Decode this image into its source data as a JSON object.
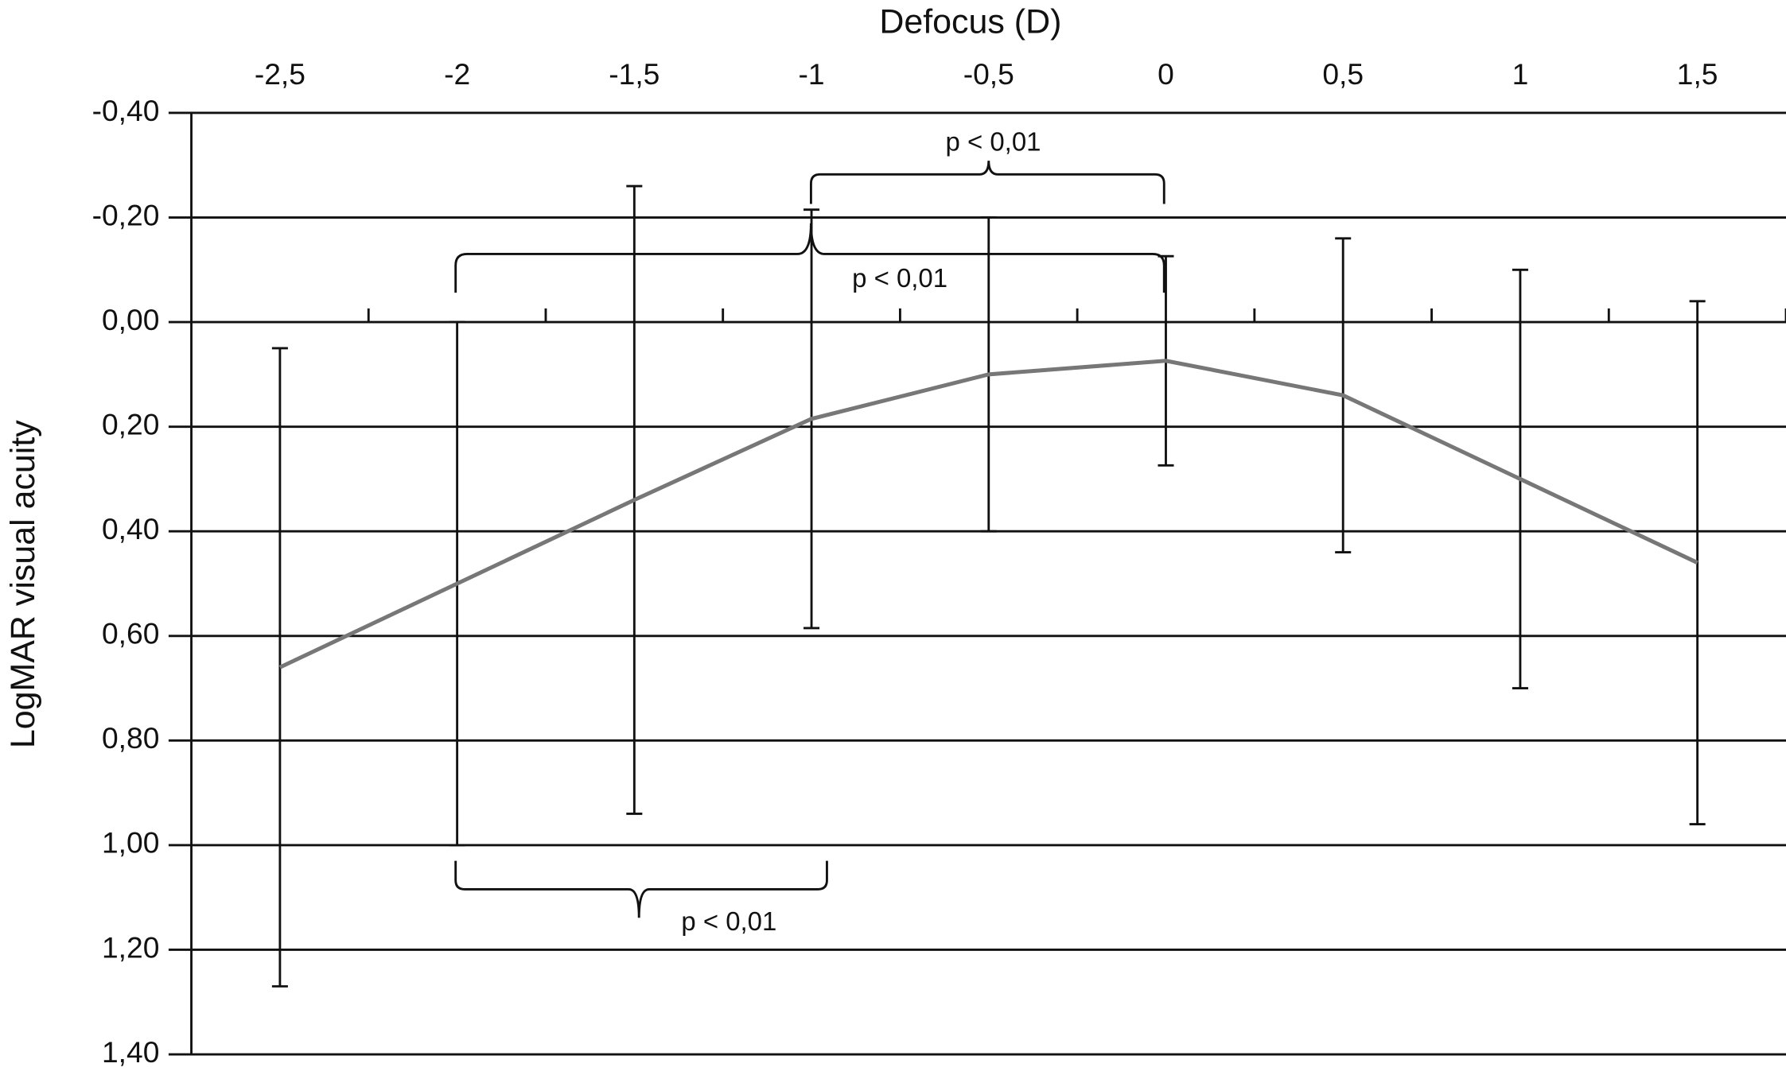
{
  "chart_data": {
    "type": "line",
    "xlabel": "Defocus (D)",
    "ylabel": "LogMAR visual acuity",
    "categories": [
      {
        "value": -2.5,
        "label": "-2,5"
      },
      {
        "value": -2,
        "label": "-2"
      },
      {
        "value": -1.5,
        "label": "-1,5"
      },
      {
        "value": -1,
        "label": "-1"
      },
      {
        "value": -0.5,
        "label": "-0,5"
      },
      {
        "value": 0,
        "label": "0"
      },
      {
        "value": 0.5,
        "label": "0,5"
      },
      {
        "value": 1,
        "label": "1"
      },
      {
        "value": 1.5,
        "label": "1,5"
      }
    ],
    "series": [
      {
        "color": "#777777",
        "values": [
          0.66,
          0.5,
          0.34,
          0.185,
          0.1,
          0.074,
          0.14,
          0.3,
          0.46
        ],
        "errors": [
          0.61,
          0.5,
          0.6,
          0.4,
          0.3,
          0.2,
          0.3,
          0.4,
          0.5
        ]
      }
    ],
    "ylim": [
      -0.4,
      1.4
    ],
    "y_inverted": true,
    "yticks": [
      {
        "value": -0.4,
        "label": "-0,40"
      },
      {
        "value": -0.2,
        "label": "-0,20"
      },
      {
        "value": 0,
        "label": "0,00"
      },
      {
        "value": 0.2,
        "label": "0,20"
      },
      {
        "value": 0.4,
        "label": "0,40"
      },
      {
        "value": 0.6,
        "label": "0,60"
      },
      {
        "value": 0.8,
        "label": "0,80"
      },
      {
        "value": 1.0,
        "label": "1,00"
      },
      {
        "value": 1.2,
        "label": "1,20"
      },
      {
        "value": 1.4,
        "label": "1,40"
      }
    ],
    "grid": true,
    "annotations": [
      "p < 0,01",
      "p < 0,01",
      "p < 0,01"
    ]
  }
}
